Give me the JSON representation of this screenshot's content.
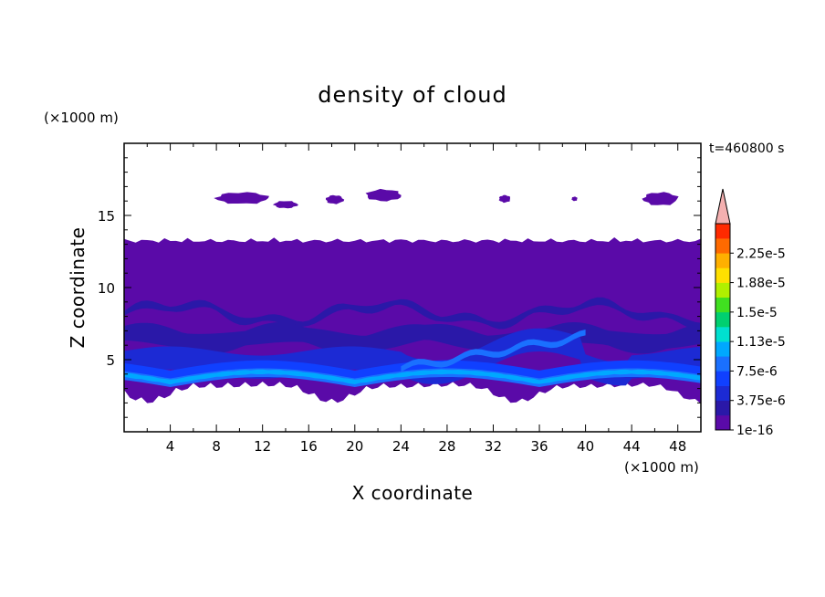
{
  "chart_data": {
    "type": "heatmap",
    "title": "density of cloud",
    "xlabel": "X coordinate",
    "ylabel": "Z coordinate",
    "x_unit": "(×1000 m)",
    "z_unit": "(×1000 m)",
    "time_label": "t=460800 s",
    "xlim": [
      0,
      50
    ],
    "ylim": [
      0,
      20
    ],
    "x_ticks": [
      4,
      8,
      12,
      16,
      20,
      24,
      28,
      32,
      36,
      40,
      44,
      48
    ],
    "y_ticks": [
      5,
      10,
      15
    ],
    "colorbar": {
      "levels": [
        1e-16,
        1.875e-06,
        3.75e-06,
        5.625e-06,
        7.5e-06,
        9.375e-06,
        1.125e-05,
        1.3125e-05,
        1.5e-05,
        1.6875e-05,
        1.875e-05,
        2.0625e-05,
        2.25e-05,
        2.4375e-05
      ],
      "tick_labels": [
        "1e-16",
        "3.75e-6",
        "7.5e-6",
        "1.13e-5",
        "1.5e-5",
        "1.88e-5",
        "2.25e-5"
      ],
      "colors": [
        "#5a0aa8",
        "#2a18a8",
        "#1c2ad4",
        "#1040ff",
        "#1a70ff",
        "#00a8ff",
        "#00e0d0",
        "#00d070",
        "#40e020",
        "#b0f000",
        "#ffe000",
        "#ffb000",
        "#ff6a00",
        "#ff2a00"
      ],
      "extend_color": "#f4b0b0"
    },
    "cloud_layer_main": {
      "z_bottom": 1.5,
      "z_top": 13.5,
      "x_range": [
        0,
        50
      ]
    },
    "upper_patches": [
      {
        "x": [
          8,
          12.5
        ],
        "z": [
          15.8,
          16.6
        ]
      },
      {
        "x": [
          13,
          15
        ],
        "z": [
          15.5,
          16.0
        ]
      },
      {
        "x": [
          17.5,
          19
        ],
        "z": [
          15.8,
          16.4
        ]
      },
      {
        "x": [
          21,
          24
        ],
        "z": [
          16.0,
          16.8
        ]
      },
      {
        "x": [
          32.5,
          33.5
        ],
        "z": [
          15.9,
          16.4
        ]
      },
      {
        "x": [
          38.8,
          39.3
        ],
        "z": [
          16.0,
          16.3
        ]
      },
      {
        "x": [
          45,
          48
        ],
        "z": [
          15.7,
          16.6
        ]
      }
    ]
  }
}
